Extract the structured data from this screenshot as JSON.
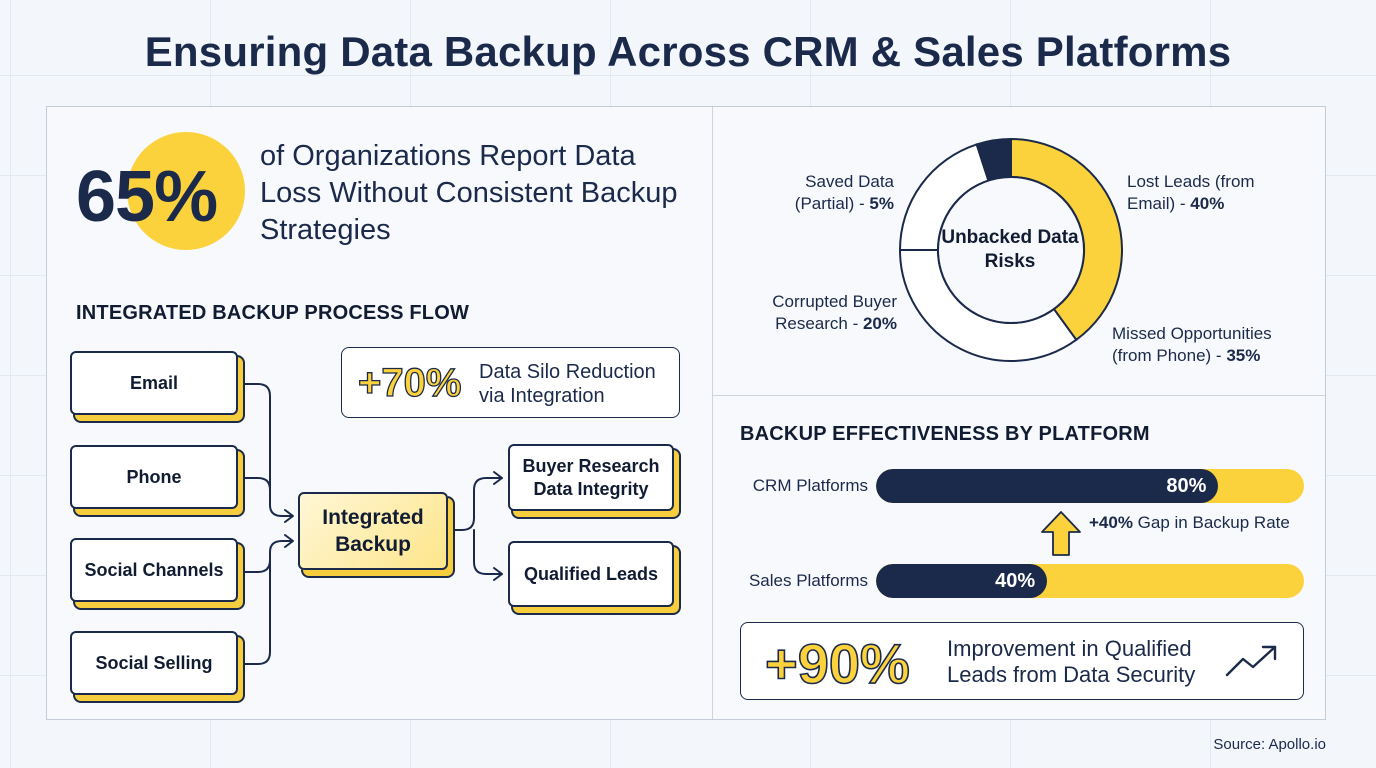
{
  "title": "Ensuring Data Backup Across CRM & Sales Platforms",
  "stat": {
    "value": "65%",
    "text": "of Organizations Report Data Loss Without Consistent Backup Strategies"
  },
  "flow": {
    "heading": "INTEGRATED BACKUP PROCESS FLOW",
    "sources": [
      "Email",
      "Phone",
      "Social Channels",
      "Social Selling"
    ],
    "center": "Integrated Backup",
    "outputs": [
      "Buyer Research Data Integrity",
      "Qualified Leads"
    ],
    "callout_value": "+70%",
    "callout_text": "Data Silo Reduction via Integration"
  },
  "donut": {
    "center_label": "Unbacked Data Risks",
    "labels": {
      "saved": "Saved Data (Partial) - ",
      "saved_pct": "5%",
      "lost": "Lost Leads (from Email) - ",
      "lost_pct": "40%",
      "corrupted": "Corrupted Buyer Research - ",
      "corrupted_pct": "20%",
      "missed": "Missed Opportunities (from Phone) - ",
      "missed_pct": "35%"
    }
  },
  "bars": {
    "heading": "BACKUP EFFECTIVENESS BY PLATFORM",
    "crm_label": "CRM Platforms",
    "crm_value_text": "80%",
    "sales_label": "Sales Platforms",
    "sales_value_text": "40%",
    "gap_bold": "+40%",
    "gap_text": " Gap in Backup Rate"
  },
  "improvement": {
    "value": "+90%",
    "text": "Improvement in Qualified Leads from Data Security"
  },
  "source": "Source: Apollo.io",
  "colors": {
    "navy": "#1b2a4a",
    "yellow": "#fcd23c",
    "white": "#ffffff"
  },
  "icons": [
    "trend-up-icon",
    "arrow-up-icon"
  ],
  "chart_data": [
    {
      "type": "pie",
      "title": "Unbacked Data Risks",
      "categories": [
        "Lost Leads (from Email)",
        "Missed Opportunities (from Phone)",
        "Corrupted Buyer Research",
        "Saved Data (Partial)"
      ],
      "values": [
        40,
        35,
        20,
        5
      ],
      "colors": [
        "#fcd23c",
        "#ffffff",
        "#ffffff",
        "#1b2a4a"
      ]
    },
    {
      "type": "bar",
      "title": "BACKUP EFFECTIVENESS BY PLATFORM",
      "categories": [
        "CRM Platforms",
        "Sales Platforms"
      ],
      "values": [
        80,
        40
      ],
      "ylim": [
        0,
        100
      ]
    }
  ]
}
